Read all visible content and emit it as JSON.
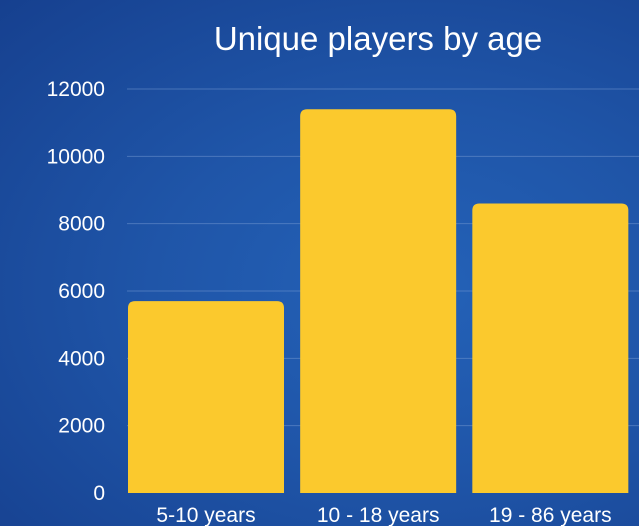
{
  "chart_data": {
    "type": "bar",
    "title": "Unique players by age",
    "categories": [
      "5-10 years",
      "10 - 18 years",
      "19 - 86 years"
    ],
    "values": [
      5700,
      11400,
      8600
    ],
    "ylim": [
      0,
      12000
    ],
    "yticks": [
      "0",
      "2000",
      "4000",
      "6000",
      "8000",
      "10000",
      "12000"
    ],
    "ytick_values": [
      0,
      2000,
      4000,
      6000,
      8000,
      10000,
      12000
    ],
    "grid": true,
    "bar_color": "#fbc92d"
  }
}
